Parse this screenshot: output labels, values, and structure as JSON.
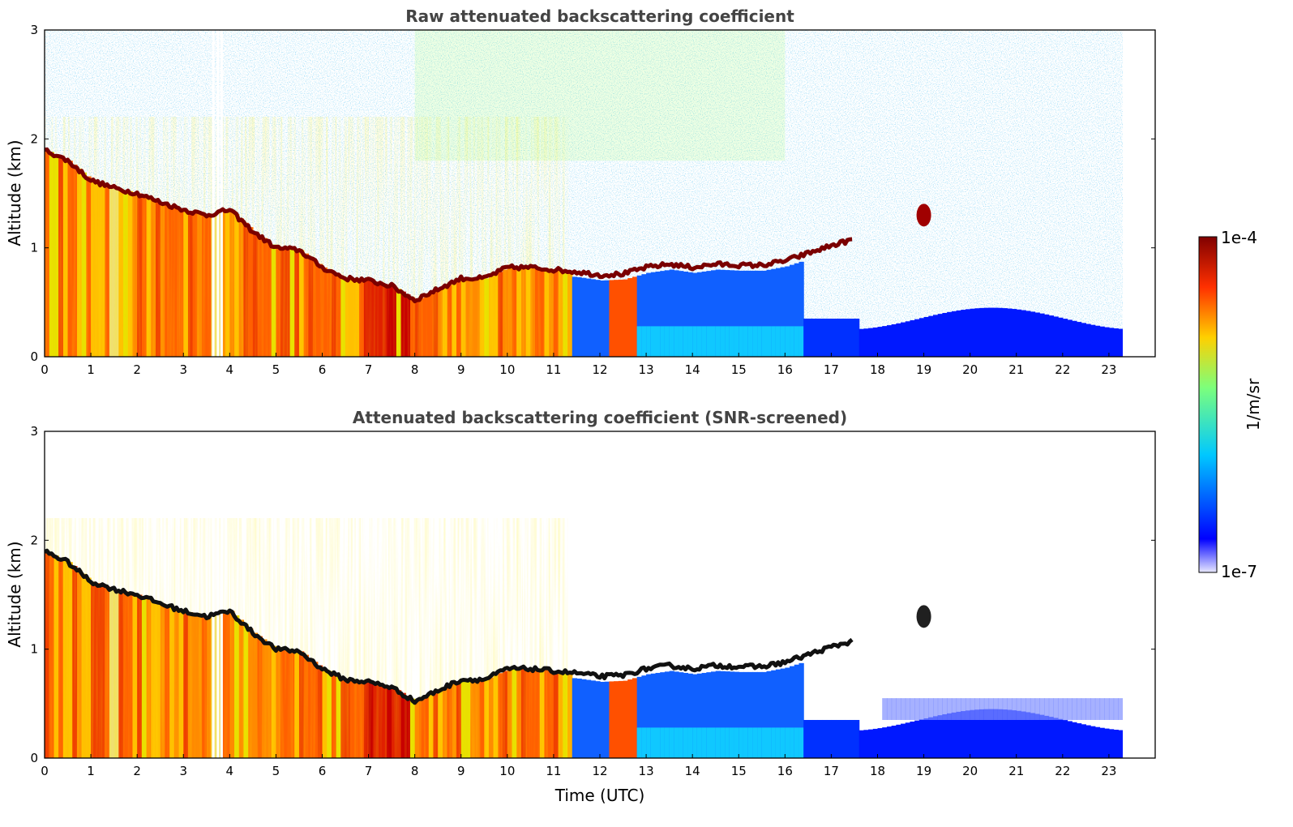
{
  "chart_data": [
    {
      "type": "heatmap",
      "title": "Raw attenuated backscattering coefficient",
      "xlabel": "",
      "ylabel": "Altitude (km)",
      "xlim": [
        0,
        24
      ],
      "ylim": [
        0,
        3
      ],
      "x_ticks": [
        "0",
        "1",
        "2",
        "3",
        "4",
        "5",
        "6",
        "7",
        "8",
        "9",
        "10",
        "11",
        "12",
        "13",
        "14",
        "15",
        "16",
        "17",
        "18",
        "19",
        "20",
        "21",
        "22",
        "23"
      ],
      "y_ticks": [
        "0",
        "1",
        "2",
        "3"
      ],
      "data_end_time": 23.3,
      "cloud_base_km": [
        [
          0.0,
          1.9
        ],
        [
          0.5,
          1.8
        ],
        [
          1.0,
          1.62
        ],
        [
          1.5,
          1.55
        ],
        [
          2.0,
          1.5
        ],
        [
          2.5,
          1.42
        ],
        [
          3.0,
          1.35
        ],
        [
          3.5,
          1.3
        ],
        [
          4.0,
          1.35
        ],
        [
          4.5,
          1.15
        ],
        [
          5.0,
          1.0
        ],
        [
          5.5,
          0.98
        ],
        [
          6.0,
          0.82
        ],
        [
          6.5,
          0.72
        ],
        [
          7.0,
          0.7
        ],
        [
          7.5,
          0.65
        ],
        [
          8.0,
          0.52
        ],
        [
          8.5,
          0.62
        ],
        [
          9.0,
          0.72
        ],
        [
          9.5,
          0.72
        ],
        [
          10.0,
          0.82
        ],
        [
          10.5,
          0.82
        ],
        [
          11.0,
          0.8
        ],
        [
          11.5,
          0.78
        ],
        [
          12.0,
          0.75
        ],
        [
          12.5,
          0.76
        ],
        [
          13.0,
          0.82
        ],
        [
          13.5,
          0.85
        ],
        [
          14.0,
          0.82
        ],
        [
          14.5,
          0.85
        ],
        [
          15.0,
          0.84
        ],
        [
          15.5,
          0.84
        ],
        [
          16.0,
          0.88
        ],
        [
          16.5,
          0.95
        ],
        [
          17.0,
          1.02
        ],
        [
          17.5,
          1.08
        ]
      ],
      "isolated_cloud": {
        "time": 19.0,
        "altitude_km": 1.3
      }
    },
    {
      "type": "heatmap",
      "title": "Attenuated backscattering coefficient (SNR-screened)",
      "xlabel": "Time (UTC)",
      "ylabel": "Altitude (km)",
      "xlim": [
        0,
        24
      ],
      "ylim": [
        0,
        3
      ],
      "x_ticks": [
        "0",
        "1",
        "2",
        "3",
        "4",
        "5",
        "6",
        "7",
        "8",
        "9",
        "10",
        "11",
        "12",
        "13",
        "14",
        "15",
        "16",
        "17",
        "18",
        "19",
        "20",
        "21",
        "22",
        "23"
      ],
      "y_ticks": [
        "0",
        "1",
        "2",
        "3"
      ],
      "data_end_time": 23.3,
      "isolated_cloud": {
        "time": 19.0,
        "altitude_km": 1.3
      }
    }
  ],
  "colorbar": {
    "label": "1/m/sr",
    "max_label": "1e-4",
    "min_label": "1e-7",
    "colormap": "jet",
    "colors": [
      "#e8e8ff",
      "#0000ff",
      "#00c8ff",
      "#7cff7c",
      "#ffd000",
      "#ff3000",
      "#800000"
    ]
  }
}
